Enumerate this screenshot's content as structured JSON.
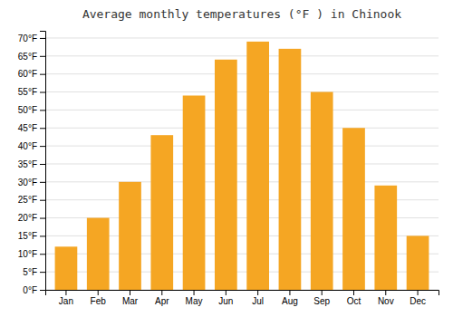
{
  "chart_data": {
    "type": "bar",
    "title": "Average monthly temperatures (°F ) in Chinook",
    "categories": [
      "Jan",
      "Feb",
      "Mar",
      "Apr",
      "May",
      "Jun",
      "Jul",
      "Aug",
      "Sep",
      "Oct",
      "Nov",
      "Dec"
    ],
    "values": [
      12,
      20,
      30,
      43,
      54,
      64,
      69,
      67,
      55,
      45,
      29,
      15
    ],
    "color": "#F5A623",
    "ylim": [
      0,
      72
    ],
    "yticks": [
      {
        "value": 0,
        "label": "0°F"
      },
      {
        "value": 5,
        "label": "5°F"
      },
      {
        "value": 10,
        "label": "10°F"
      },
      {
        "value": 15,
        "label": "15°F"
      },
      {
        "value": 20,
        "label": "20°F"
      },
      {
        "value": 25,
        "label": "25°F"
      },
      {
        "value": 30,
        "label": "30°F"
      },
      {
        "value": 35,
        "label": "35°F"
      },
      {
        "value": 40,
        "label": "40°F"
      },
      {
        "value": 45,
        "label": "45°F"
      },
      {
        "value": 50,
        "label": "50°F"
      },
      {
        "value": 55,
        "label": "55°F"
      },
      {
        "value": 60,
        "label": "60°F"
      },
      {
        "value": 65,
        "label": "65°F"
      },
      {
        "value": 70,
        "label": "70°F"
      }
    ],
    "grid": true
  }
}
